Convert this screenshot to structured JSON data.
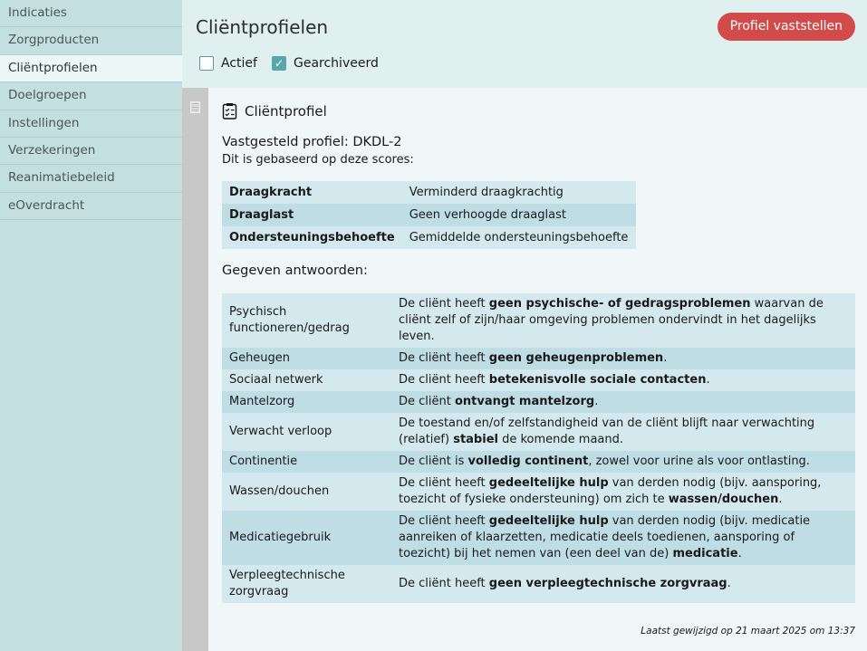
{
  "sidebar": {
    "items": [
      {
        "label": "Indicaties"
      },
      {
        "label": "Zorgproducten"
      },
      {
        "label": "Cliëntprofielen",
        "active": true
      },
      {
        "label": "Doelgroepen"
      },
      {
        "label": "Instellingen"
      },
      {
        "label": "Verzekeringen"
      },
      {
        "label": "Reanimatiebeleid"
      },
      {
        "label": "eOverdracht"
      }
    ]
  },
  "header": {
    "title": "Cliëntprofielen",
    "button": "Profiel vaststellen",
    "filters": [
      {
        "label": "Actief",
        "checked": false
      },
      {
        "label": "Gearchiveerd",
        "checked": true
      }
    ]
  },
  "colors": {
    "accent": "#d24a4a",
    "sidebar": "#c3dfe0",
    "checkbox": "#5aa7a9"
  },
  "card": {
    "icon": "clipboard-check-icon",
    "title": "Cliëntprofiel",
    "profile": "Vastgesteld profiel: DKDL-2",
    "subtitle": "Dit is gebaseerd op deze scores:",
    "scores": [
      {
        "label": "Draagkracht",
        "value": "Verminderd draagkrachtig"
      },
      {
        "label": "Draaglast",
        "value": "Geen verhoogde draaglast"
      },
      {
        "label": "Ondersteuningsbehoefte",
        "value": "Gemiddelde ondersteuningsbehoefte"
      }
    ],
    "answers_title": "Gegeven antwoorden:",
    "answers": [
      {
        "label": "Psychisch functioneren/gedrag",
        "text": [
          [
            "De cliënt heeft ",
            0
          ],
          [
            "geen psychische- of gedragsproblemen",
            1
          ],
          [
            " waarvan de cliënt zelf of zijn/haar omgeving problemen ondervindt in het dagelijks leven.",
            0
          ]
        ]
      },
      {
        "label": "Geheugen",
        "text": [
          [
            "De cliënt heeft ",
            0
          ],
          [
            "geen geheugenproblemen",
            1
          ],
          [
            ".",
            0
          ]
        ]
      },
      {
        "label": "Sociaal netwerk",
        "text": [
          [
            "De cliënt heeft ",
            0
          ],
          [
            "betekenisvolle sociale contacten",
            1
          ],
          [
            ".",
            0
          ]
        ]
      },
      {
        "label": "Mantelzorg",
        "text": [
          [
            "De cliënt ",
            0
          ],
          [
            "ontvangt mantelzorg",
            1
          ],
          [
            ".",
            0
          ]
        ]
      },
      {
        "label": "Verwacht verloop",
        "text": [
          [
            "De toestand en/of zelfstandigheid van de cliënt blijft naar verwachting (relatief) ",
            0
          ],
          [
            "stabiel",
            1
          ],
          [
            " de komende maand.",
            0
          ]
        ]
      },
      {
        "label": "Continentie",
        "text": [
          [
            "De cliënt is ",
            0
          ],
          [
            "volledig continent",
            1
          ],
          [
            ", zowel voor urine als voor ontlasting.",
            0
          ]
        ]
      },
      {
        "label": "Wassen/douchen",
        "text": [
          [
            "De cliënt heeft ",
            0
          ],
          [
            "gedeeltelijke hulp",
            1
          ],
          [
            " van derden nodig (bijv. aansporing, toezicht of fysieke ondersteuning) om zich te ",
            0
          ],
          [
            "wassen/douchen",
            1
          ],
          [
            ".",
            0
          ]
        ]
      },
      {
        "label": "Medicatiegebruik",
        "text": [
          [
            "De cliënt heeft ",
            0
          ],
          [
            "gedeeltelijke hulp",
            1
          ],
          [
            " van derden nodig (bijv. medicatie aanreiken of klaarzetten, medicatie deels toedienen, aansporing of toezicht) bij het nemen van (een deel van de) ",
            0
          ],
          [
            "medicatie",
            1
          ],
          [
            ".",
            0
          ]
        ]
      },
      {
        "label": "Verpleegtechnische zorgvraag",
        "text": [
          [
            "De cliënt heeft ",
            0
          ],
          [
            "geen verpleegtechnische zorgvraag",
            1
          ],
          [
            ".",
            0
          ]
        ]
      }
    ],
    "footer": "Laatst gewijzigd op 21 maart 2025 om 13:37"
  }
}
